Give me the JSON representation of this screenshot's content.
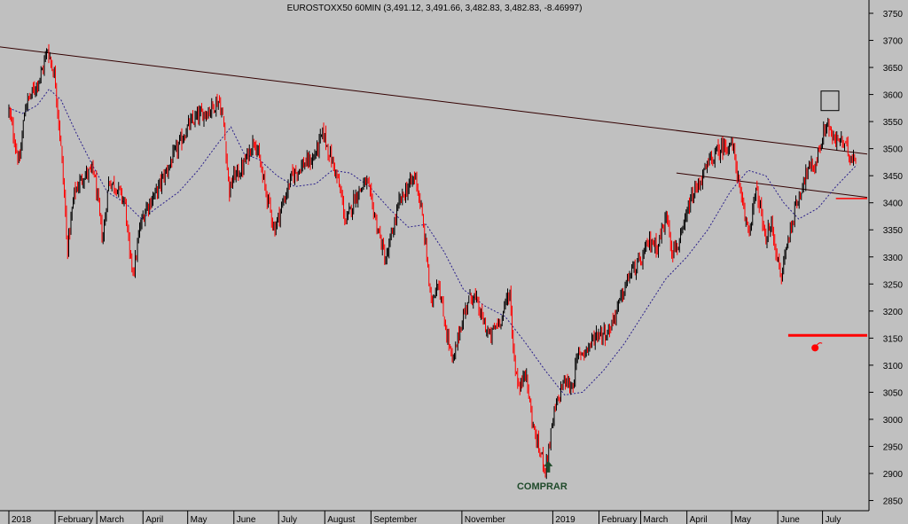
{
  "chart_data": {
    "type": "candlestick",
    "title": "EUROSTOXX50 60MIN (3,491.12, 3,491.66, 3,482.83, 3,482.83, -8.46997)",
    "xlabel": "",
    "ylabel": "",
    "ylim": [
      2850,
      3775
    ],
    "y_ticks": [
      2850,
      2900,
      2950,
      3000,
      3050,
      3100,
      3150,
      3200,
      3250,
      3300,
      3350,
      3400,
      3450,
      3500,
      3550,
      3600,
      3650,
      3700,
      3750
    ],
    "x_range": [
      "2018-01-01",
      "2019-07-31"
    ],
    "x_ticks": [
      {
        "label": "2018",
        "date": "2018-01-01"
      },
      {
        "label": "February",
        "date": "2018-02-01"
      },
      {
        "label": "March",
        "date": "2018-03-01"
      },
      {
        "label": "April",
        "date": "2018-04-01"
      },
      {
        "label": "May",
        "date": "2018-05-01"
      },
      {
        "label": "June",
        "date": "2018-06-01"
      },
      {
        "label": "July",
        "date": "2018-07-01"
      },
      {
        "label": "August",
        "date": "2018-08-01"
      },
      {
        "label": "September",
        "date": "2018-09-01"
      },
      {
        "label": "November",
        "date": "2018-11-01"
      },
      {
        "label": "2019",
        "date": "2019-01-01"
      },
      {
        "label": "February",
        "date": "2019-02-01"
      },
      {
        "label": "March",
        "date": "2019-03-01"
      },
      {
        "label": "April",
        "date": "2019-04-01"
      },
      {
        "label": "May",
        "date": "2019-05-01"
      },
      {
        "label": "June",
        "date": "2019-06-01"
      },
      {
        "label": "July",
        "date": "2019-07-01"
      }
    ],
    "price_path": [
      [
        "2018-01-01",
        3570
      ],
      [
        "2018-01-08",
        3470
      ],
      [
        "2018-01-12",
        3580
      ],
      [
        "2018-01-18",
        3610
      ],
      [
        "2018-01-23",
        3640
      ],
      [
        "2018-01-27",
        3685
      ],
      [
        "2018-02-01",
        3630
      ],
      [
        "2018-02-05",
        3500
      ],
      [
        "2018-02-08",
        3380
      ],
      [
        "2018-02-09",
        3310
      ],
      [
        "2018-02-14",
        3420
      ],
      [
        "2018-02-20",
        3450
      ],
      [
        "2018-02-27",
        3460
      ],
      [
        "2018-03-05",
        3330
      ],
      [
        "2018-03-09",
        3440
      ],
      [
        "2018-03-14",
        3430
      ],
      [
        "2018-03-20",
        3400
      ],
      [
        "2018-03-23",
        3300
      ],
      [
        "2018-03-26",
        3275
      ],
      [
        "2018-03-30",
        3355
      ],
      [
        "2018-04-03",
        3390
      ],
      [
        "2018-04-10",
        3420
      ],
      [
        "2018-04-17",
        3460
      ],
      [
        "2018-04-24",
        3500
      ],
      [
        "2018-05-01",
        3540
      ],
      [
        "2018-05-08",
        3560
      ],
      [
        "2018-05-15",
        3570
      ],
      [
        "2018-05-22",
        3590
      ],
      [
        "2018-05-25",
        3550
      ],
      [
        "2018-05-29",
        3420
      ],
      [
        "2018-06-01",
        3450
      ],
      [
        "2018-06-06",
        3460
      ],
      [
        "2018-06-12",
        3500
      ],
      [
        "2018-06-15",
        3520
      ],
      [
        "2018-06-20",
        3450
      ],
      [
        "2018-06-26",
        3380
      ],
      [
        "2018-06-28",
        3350
      ],
      [
        "2018-07-04",
        3400
      ],
      [
        "2018-07-10",
        3450
      ],
      [
        "2018-07-17",
        3470
      ],
      [
        "2018-07-24",
        3480
      ],
      [
        "2018-07-27",
        3500
      ],
      [
        "2018-07-31",
        3530
      ],
      [
        "2018-08-03",
        3500
      ],
      [
        "2018-08-08",
        3460
      ],
      [
        "2018-08-13",
        3400
      ],
      [
        "2018-08-15",
        3360
      ],
      [
        "2018-08-21",
        3410
      ],
      [
        "2018-08-29",
        3440
      ],
      [
        "2018-09-04",
        3370
      ],
      [
        "2018-09-11",
        3290
      ],
      [
        "2018-09-14",
        3330
      ],
      [
        "2018-09-20",
        3400
      ],
      [
        "2018-09-26",
        3430
      ],
      [
        "2018-10-01",
        3450
      ],
      [
        "2018-10-05",
        3380
      ],
      [
        "2018-10-09",
        3290
      ],
      [
        "2018-10-11",
        3210
      ],
      [
        "2018-10-16",
        3260
      ],
      [
        "2018-10-19",
        3200
      ],
      [
        "2018-10-24",
        3130
      ],
      [
        "2018-10-26",
        3100
      ],
      [
        "2018-10-30",
        3160
      ],
      [
        "2018-11-05",
        3220
      ],
      [
        "2018-11-09",
        3230
      ],
      [
        "2018-11-14",
        3190
      ],
      [
        "2018-11-20",
        3150
      ],
      [
        "2018-11-23",
        3170
      ],
      [
        "2018-11-28",
        3190
      ],
      [
        "2018-12-03",
        3240
      ],
      [
        "2018-12-06",
        3110
      ],
      [
        "2018-12-10",
        3050
      ],
      [
        "2018-12-13",
        3100
      ],
      [
        "2018-12-18",
        3000
      ],
      [
        "2018-12-21",
        2960
      ],
      [
        "2018-12-27",
        2910
      ],
      [
        "2019-01-02",
        3010
      ],
      [
        "2019-01-08",
        3070
      ],
      [
        "2019-01-14",
        3060
      ],
      [
        "2019-01-18",
        3120
      ],
      [
        "2019-01-24",
        3130
      ],
      [
        "2019-01-31",
        3160
      ],
      [
        "2019-02-07",
        3160
      ],
      [
        "2019-02-14",
        3210
      ],
      [
        "2019-02-22",
        3270
      ],
      [
        "2019-03-01",
        3290
      ],
      [
        "2019-03-07",
        3330
      ],
      [
        "2019-03-12",
        3320
      ],
      [
        "2019-03-19",
        3380
      ],
      [
        "2019-03-22",
        3310
      ],
      [
        "2019-03-28",
        3330
      ],
      [
        "2019-04-03",
        3400
      ],
      [
        "2019-04-10",
        3440
      ],
      [
        "2019-04-17",
        3480
      ],
      [
        "2019-04-24",
        3500
      ],
      [
        "2019-04-30",
        3510
      ],
      [
        "2019-05-03",
        3490
      ],
      [
        "2019-05-07",
        3410
      ],
      [
        "2019-05-10",
        3370
      ],
      [
        "2019-05-13",
        3350
      ],
      [
        "2019-05-17",
        3420
      ],
      [
        "2019-05-20",
        3400
      ],
      [
        "2019-05-23",
        3330
      ],
      [
        "2019-05-28",
        3360
      ],
      [
        "2019-06-03",
        3255
      ],
      [
        "2019-06-06",
        3310
      ],
      [
        "2019-06-12",
        3380
      ],
      [
        "2019-06-18",
        3440
      ],
      [
        "2019-06-21",
        3460
      ],
      [
        "2019-06-26",
        3470
      ],
      [
        "2019-07-02",
        3530
      ],
      [
        "2019-07-04",
        3550
      ],
      [
        "2019-07-09",
        3510
      ],
      [
        "2019-07-12",
        3520
      ],
      [
        "2019-07-17",
        3500
      ],
      [
        "2019-07-19",
        3490
      ],
      [
        "2019-07-24",
        3483
      ]
    ],
    "moving_average": [
      [
        "2018-01-01",
        3575
      ],
      [
        "2018-01-10",
        3565
      ],
      [
        "2018-01-20",
        3580
      ],
      [
        "2018-01-28",
        3610
      ],
      [
        "2018-02-05",
        3590
      ],
      [
        "2018-02-15",
        3530
      ],
      [
        "2018-02-26",
        3470
      ],
      [
        "2018-03-08",
        3420
      ],
      [
        "2018-03-20",
        3400
      ],
      [
        "2018-03-31",
        3370
      ],
      [
        "2018-04-10",
        3390
      ],
      [
        "2018-04-25",
        3420
      ],
      [
        "2018-05-08",
        3460
      ],
      [
        "2018-05-20",
        3505
      ],
      [
        "2018-05-30",
        3540
      ],
      [
        "2018-06-08",
        3490
      ],
      [
        "2018-06-18",
        3480
      ],
      [
        "2018-06-30",
        3450
      ],
      [
        "2018-07-12",
        3430
      ],
      [
        "2018-07-26",
        3435
      ],
      [
        "2018-08-06",
        3460
      ],
      [
        "2018-08-18",
        3455
      ],
      [
        "2018-08-31",
        3430
      ],
      [
        "2018-09-13",
        3390
      ],
      [
        "2018-09-26",
        3355
      ],
      [
        "2018-10-08",
        3360
      ],
      [
        "2018-10-20",
        3310
      ],
      [
        "2018-11-02",
        3240
      ],
      [
        "2018-11-16",
        3210
      ],
      [
        "2018-11-30",
        3190
      ],
      [
        "2018-12-14",
        3140
      ],
      [
        "2018-12-27",
        3090
      ],
      [
        "2019-01-09",
        3045
      ],
      [
        "2019-01-21",
        3050
      ],
      [
        "2019-02-04",
        3090
      ],
      [
        "2019-02-18",
        3140
      ],
      [
        "2019-03-04",
        3200
      ],
      [
        "2019-03-18",
        3260
      ],
      [
        "2019-04-01",
        3300
      ],
      [
        "2019-04-15",
        3350
      ],
      [
        "2019-04-30",
        3420
      ],
      [
        "2019-05-12",
        3460
      ],
      [
        "2019-05-24",
        3450
      ],
      [
        "2019-06-05",
        3400
      ],
      [
        "2019-06-15",
        3370
      ],
      [
        "2019-06-28",
        3390
      ],
      [
        "2019-07-10",
        3430
      ],
      [
        "2019-07-24",
        3470
      ]
    ],
    "trendlines": [
      {
        "kind": "resistance",
        "color": "#330000",
        "from": [
          "2017-12-20",
          3690
        ],
        "to": [
          "2019-07-31",
          3490
        ]
      },
      {
        "kind": "support",
        "color": "#330000",
        "from": [
          "2019-03-25",
          3455
        ],
        "to": [
          "2019-07-31",
          3410
        ]
      }
    ],
    "horizontal_lines": [
      {
        "value": 3155,
        "color": "#ff0000",
        "from": "2019-06-08",
        "to": "2019-07-31"
      },
      {
        "value": 3408,
        "color": "#ff0000",
        "from": "2019-07-10",
        "to": "2019-07-31"
      }
    ],
    "annotations": [
      {
        "text": "COMPRAR",
        "date": "2018-12-29",
        "value": 2910,
        "color": "#1f4a2a"
      }
    ],
    "markers": [
      {
        "type": "bomb",
        "date": "2019-06-26",
        "value": 3132,
        "color": "#ff0000"
      },
      {
        "type": "box",
        "date": "2019-07-06",
        "value": 3590
      }
    ],
    "colors": {
      "background": "#c0c0c0",
      "bull": "#000000",
      "bear": "#ff0000",
      "moving_average": "#2a1f8a",
      "trendline": "#330000",
      "buy_arrow": "#1f4a2a"
    },
    "grid": false,
    "legend": "none"
  }
}
